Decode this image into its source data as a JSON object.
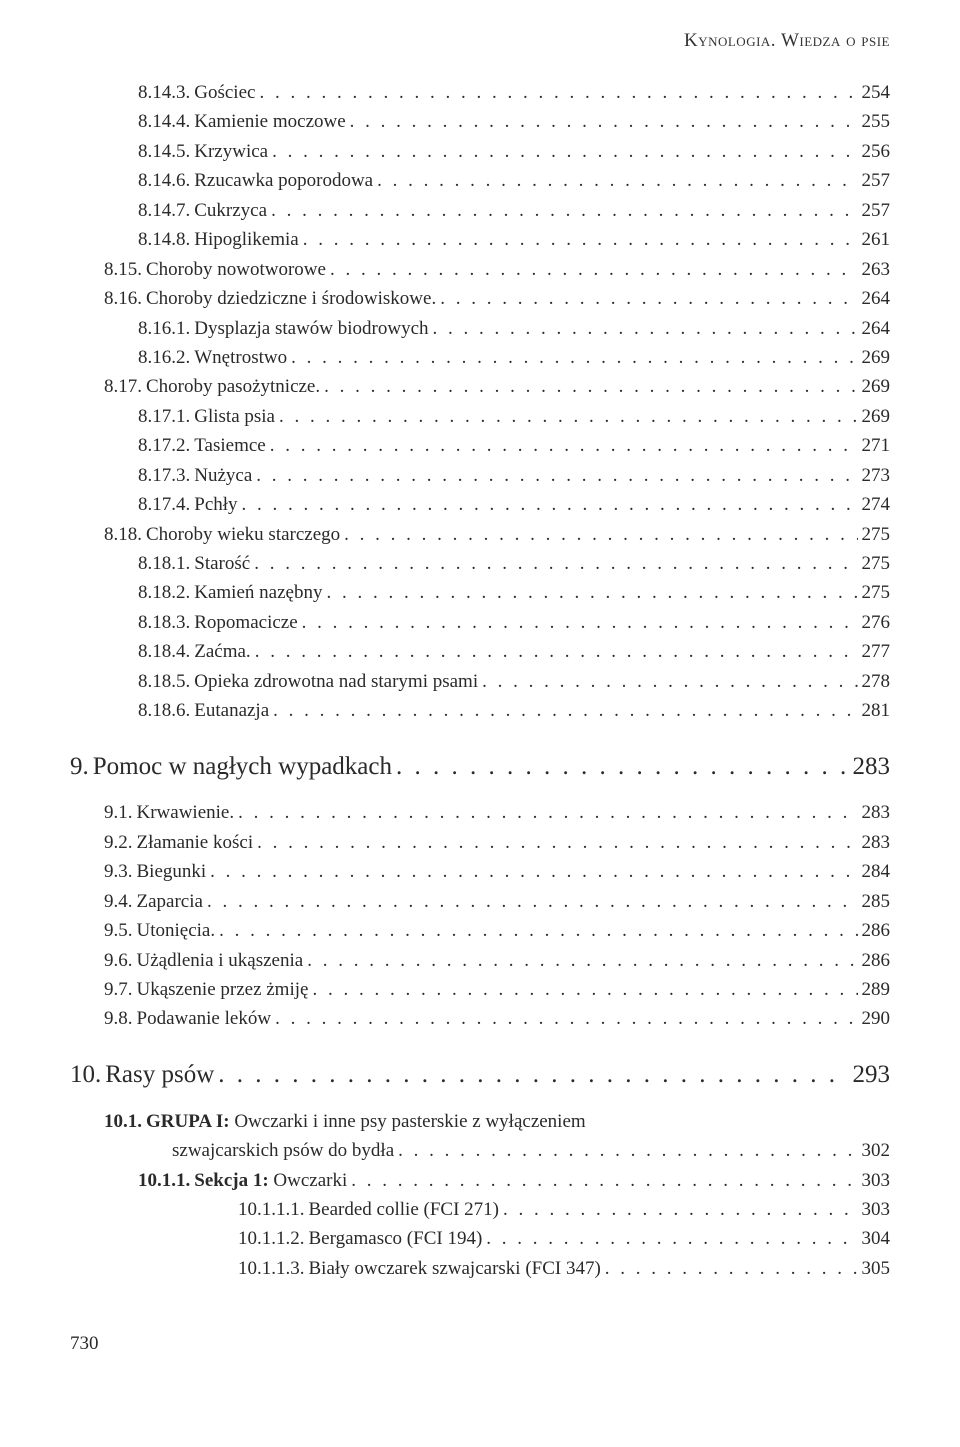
{
  "running_head": "Kynologia. Wiedza o psie",
  "page_number": "730",
  "entries": [
    {
      "indent": 1,
      "num": "8.14.3.",
      "title": "Gościec",
      "page": "254",
      "bold": false
    },
    {
      "indent": 1,
      "num": "8.14.4.",
      "title": "Kamienie moczowe",
      "page": "255",
      "bold": false
    },
    {
      "indent": 1,
      "num": "8.14.5.",
      "title": "Krzywica",
      "page": "256",
      "bold": false
    },
    {
      "indent": 1,
      "num": "8.14.6.",
      "title": "Rzucawka poporodowa",
      "page": "257",
      "bold": false
    },
    {
      "indent": 1,
      "num": "8.14.7.",
      "title": "Cukrzyca",
      "page": "257",
      "bold": false
    },
    {
      "indent": 1,
      "num": "8.14.8.",
      "title": "Hipoglikemia",
      "page": "261",
      "bold": false
    },
    {
      "indent": 0,
      "num": "8.15.",
      "title": "Choroby nowotworowe",
      "page": "263",
      "bold": false
    },
    {
      "indent": 0,
      "num": "8.16.",
      "title": "Choroby dziedziczne i środowiskowe.",
      "page": "264",
      "bold": false
    },
    {
      "indent": 1,
      "num": "8.16.1.",
      "title": "Dysplazja stawów biodrowych",
      "page": "264",
      "bold": false
    },
    {
      "indent": 1,
      "num": "8.16.2.",
      "title": "Wnętrostwo",
      "page": "269",
      "bold": false
    },
    {
      "indent": 0,
      "num": "8.17.",
      "title": "Choroby pasożytnicze.",
      "page": "269",
      "bold": false
    },
    {
      "indent": 1,
      "num": "8.17.1.",
      "title": "Glista psia",
      "page": "269",
      "bold": false
    },
    {
      "indent": 1,
      "num": "8.17.2.",
      "title": "Tasiemce",
      "page": "271",
      "bold": false
    },
    {
      "indent": 1,
      "num": "8.17.3.",
      "title": "Nużyca",
      "page": "273",
      "bold": false
    },
    {
      "indent": 1,
      "num": "8.17.4.",
      "title": "Pchły",
      "page": "274",
      "bold": false
    },
    {
      "indent": 0,
      "num": "8.18.",
      "title": "Choroby wieku starczego",
      "page": "275",
      "bold": false
    },
    {
      "indent": 1,
      "num": "8.18.1.",
      "title": "Starość",
      "page": "275",
      "bold": false
    },
    {
      "indent": 1,
      "num": "8.18.2.",
      "title": "Kamień nazębny",
      "page": "275",
      "bold": false
    },
    {
      "indent": 1,
      "num": "8.18.3.",
      "title": "Ropomacicze",
      "page": "276",
      "bold": false
    },
    {
      "indent": 1,
      "num": "8.18.4.",
      "title": "Zaćma.",
      "page": "277",
      "bold": false
    },
    {
      "indent": 1,
      "num": "8.18.5.",
      "title": "Opieka zdrowotna nad starymi psami",
      "page": "278",
      "bold": false
    },
    {
      "indent": 1,
      "num": "8.18.6.",
      "title": "Eutanazja",
      "page": "281",
      "bold": false
    }
  ],
  "chapter9": {
    "num": "9.",
    "title": "Pomoc w nagłych wypadkach",
    "page": "283"
  },
  "entries9": [
    {
      "indent": 0,
      "num": "9.1.",
      "title": "Krwawienie.",
      "page": "283"
    },
    {
      "indent": 0,
      "num": "9.2.",
      "title": "Złamanie kości",
      "page": "283"
    },
    {
      "indent": 0,
      "num": "9.3.",
      "title": "Biegunki",
      "page": "284"
    },
    {
      "indent": 0,
      "num": "9.4.",
      "title": "Zaparcia",
      "page": "285"
    },
    {
      "indent": 0,
      "num": "9.5.",
      "title": "Utonięcia.",
      "page": "286"
    },
    {
      "indent": 0,
      "num": "9.6.",
      "title": "Użądlenia i ukąszenia",
      "page": "286"
    },
    {
      "indent": 0,
      "num": "9.7.",
      "title": "Ukąszenie przez żmiję",
      "page": "289"
    },
    {
      "indent": 0,
      "num": "9.8.",
      "title": "Podawanie leków",
      "page": "290"
    }
  ],
  "chapter10": {
    "num": "10.",
    "title": "Rasy psów",
    "page": "293"
  },
  "entries10": [
    {
      "indent": 0,
      "num": "10.1.",
      "title_bold": "GRUPA I:",
      "title_rest": " Owczarki i inne psy pasterskie  z wyłączeniem",
      "cont": "szwajcarskich psów do bydła",
      "page": "302",
      "numbold": true
    },
    {
      "indent": 1,
      "num": "10.1.1.",
      "title_bold": "Sekcja 1:",
      "title_rest": " Owczarki",
      "page": "303",
      "numbold": true
    },
    {
      "indent": 3,
      "num": "10.1.1.1.",
      "title": "Bearded collie (FCI 271)",
      "page": "303"
    },
    {
      "indent": 3,
      "num": "10.1.1.2.",
      "title": "Bergamasco (FCI 194)",
      "page": "304"
    },
    {
      "indent": 3,
      "num": "10.1.1.3.",
      "title": "Biały owczarek szwajcarski (FCI 347)",
      "page": "305"
    }
  ]
}
